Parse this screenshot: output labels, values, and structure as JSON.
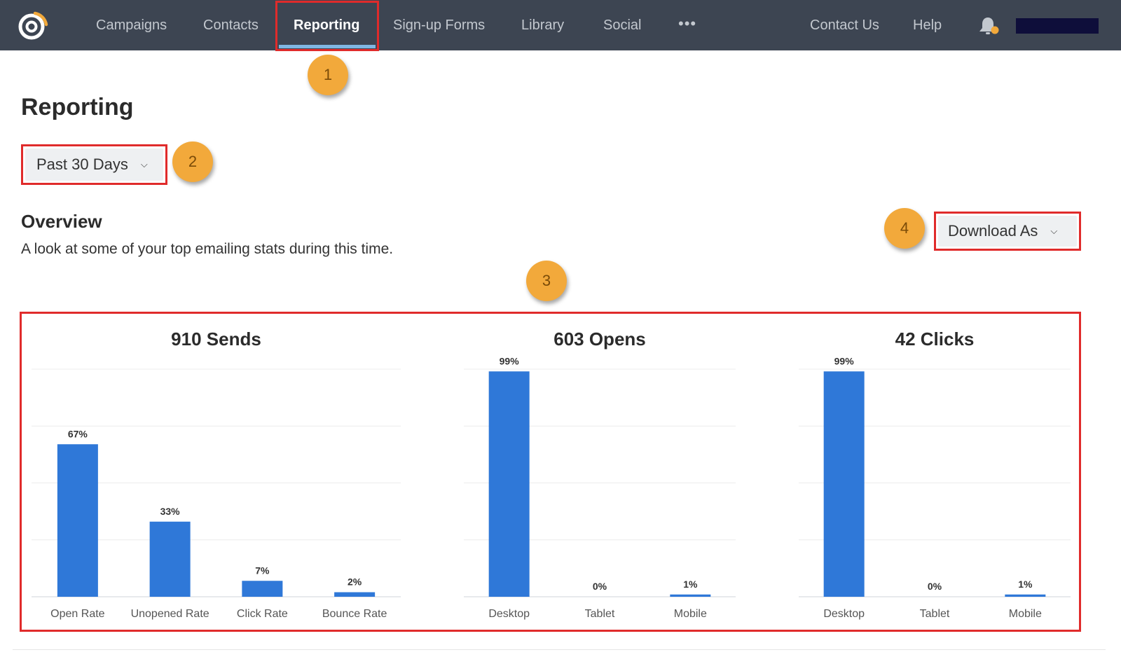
{
  "nav": {
    "items": [
      {
        "label": "Campaigns",
        "active": false
      },
      {
        "label": "Contacts",
        "active": false
      },
      {
        "label": "Reporting",
        "active": true
      },
      {
        "label": "Sign-up Forms",
        "active": false
      },
      {
        "label": "Library",
        "active": false
      },
      {
        "label": "Social",
        "active": false
      }
    ],
    "more_label": "•••",
    "right_items": [
      {
        "label": "Contact Us"
      },
      {
        "label": "Help"
      }
    ],
    "logo_icon": "constant-contact-logo-icon",
    "notification_icon": "bell-icon",
    "notification_dot_color": "#f2a93b"
  },
  "page": {
    "title": "Reporting",
    "date_range": "Past 30 Days",
    "overview_title": "Overview",
    "overview_desc": "A look at some of your top emailing stats during this time.",
    "download_label": "Download As"
  },
  "callouts": [
    "1",
    "2",
    "3",
    "4"
  ],
  "colors": {
    "nav_bg": "#3d4552",
    "bar": "#2f78d8",
    "highlight": "#e02b2b",
    "callout": "#f2a93b"
  },
  "chart_data": [
    {
      "type": "bar",
      "title": "910 Sends",
      "categories": [
        "Open Rate",
        "Unopened Rate",
        "Click Rate",
        "Bounce Rate"
      ],
      "values": [
        67,
        33,
        7,
        2
      ],
      "value_labels": [
        "67%",
        "33%",
        "7%",
        "2%"
      ],
      "ylim": [
        0,
        100
      ],
      "grid": true
    },
    {
      "type": "bar",
      "title": "603 Opens",
      "categories": [
        "Desktop",
        "Tablet",
        "Mobile"
      ],
      "values": [
        99,
        0,
        1
      ],
      "value_labels": [
        "99%",
        "0%",
        "1%"
      ],
      "ylim": [
        0,
        100
      ],
      "grid": true
    },
    {
      "type": "bar",
      "title": "42 Clicks",
      "categories": [
        "Desktop",
        "Tablet",
        "Mobile"
      ],
      "values": [
        99,
        0,
        1
      ],
      "value_labels": [
        "99%",
        "0%",
        "1%"
      ],
      "ylim": [
        0,
        100
      ],
      "grid": true
    }
  ]
}
